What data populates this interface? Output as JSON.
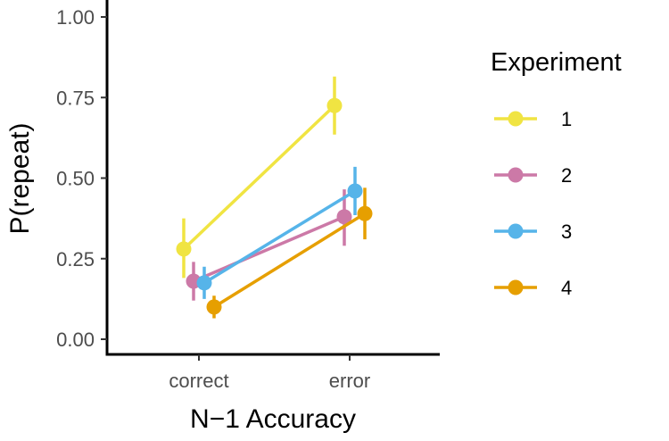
{
  "chart_data": {
    "type": "line",
    "xlabel": "N−1 Accuracy",
    "ylabel": "P(repeat)",
    "categories": [
      "correct",
      "error"
    ],
    "ylim": [
      0,
      1
    ],
    "yticks": [
      "0.00",
      "0.25",
      "0.50",
      "0.75",
      "1.00"
    ],
    "ytick_values": [
      0,
      0.25,
      0.5,
      0.75,
      1.0
    ],
    "grid": false,
    "legend": {
      "title": "Experiment",
      "placement": "right"
    },
    "series": [
      {
        "name": "1",
        "color": "#F0E442",
        "values": [
          0.28,
          0.725
        ],
        "lower": [
          0.19,
          0.635
        ],
        "upper": [
          0.375,
          0.815
        ]
      },
      {
        "name": "2",
        "color": "#CC79A7",
        "values": [
          0.18,
          0.38
        ],
        "lower": [
          0.12,
          0.29
        ],
        "upper": [
          0.24,
          0.465
        ]
      },
      {
        "name": "3",
        "color": "#56B4E9",
        "values": [
          0.175,
          0.46
        ],
        "lower": [
          0.125,
          0.385
        ],
        "upper": [
          0.225,
          0.535
        ]
      },
      {
        "name": "4",
        "color": "#E69F00",
        "values": [
          0.1,
          0.39
        ],
        "lower": [
          0.065,
          0.31
        ],
        "upper": [
          0.135,
          0.47
        ]
      }
    ]
  }
}
